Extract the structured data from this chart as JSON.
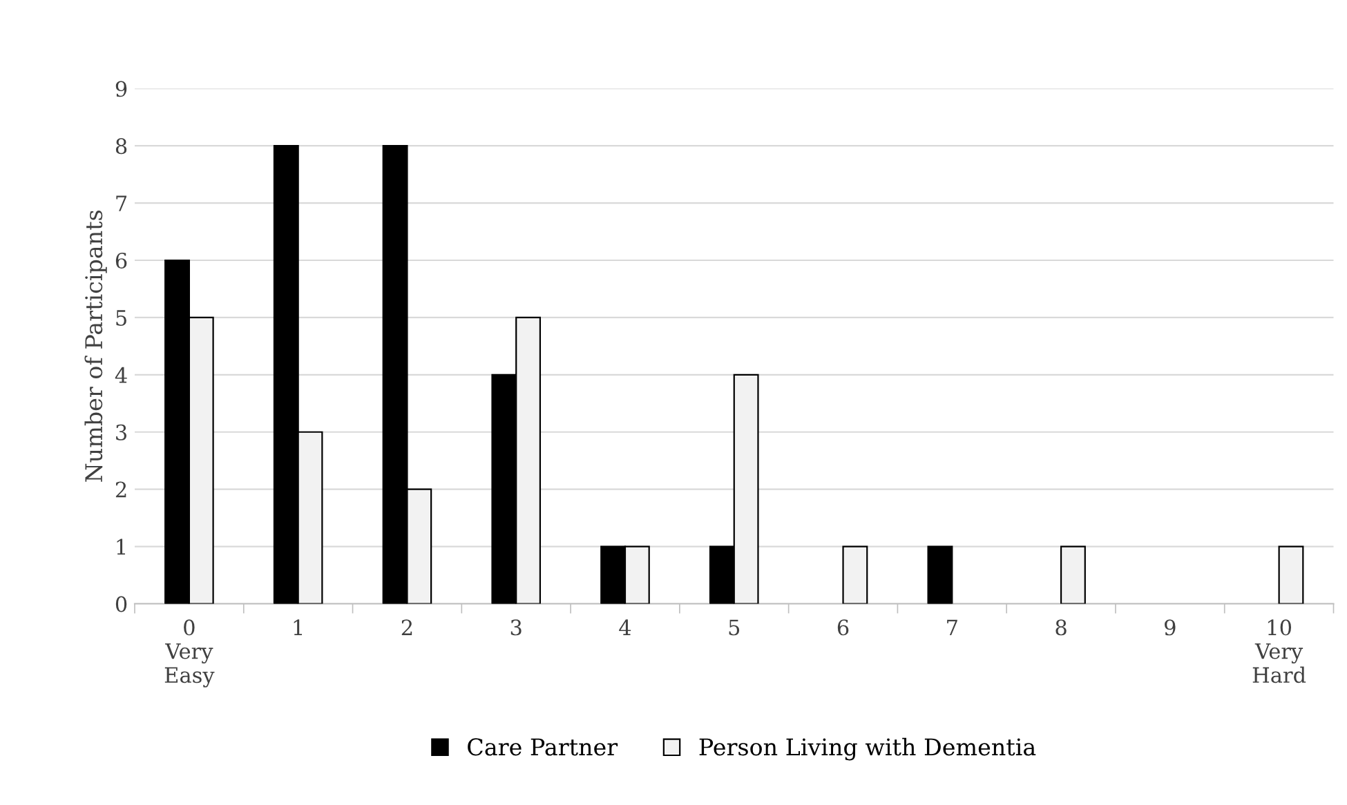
{
  "chart_data": {
    "type": "bar",
    "ylabel": "Number of Participants",
    "categories": [
      "0\nVery\nEasy",
      "1",
      "2",
      "3",
      "4",
      "5",
      "6",
      "7",
      "8",
      "9",
      "10\nVery\nHard"
    ],
    "series": [
      {
        "name": "Care Partner",
        "color": "#000000",
        "values": [
          6,
          8,
          8,
          4,
          1,
          1,
          0,
          1,
          0,
          0,
          0
        ]
      },
      {
        "name": "Person Living with Dementia",
        "color": "#f2f2f2",
        "values": [
          5,
          3,
          2,
          5,
          1,
          4,
          1,
          0,
          1,
          0,
          1
        ]
      }
    ],
    "ylim": [
      0,
      9
    ],
    "yticks": [
      0,
      1,
      2,
      3,
      4,
      5,
      6,
      7,
      8,
      9
    ],
    "grid": "y",
    "legend": "bottom"
  }
}
